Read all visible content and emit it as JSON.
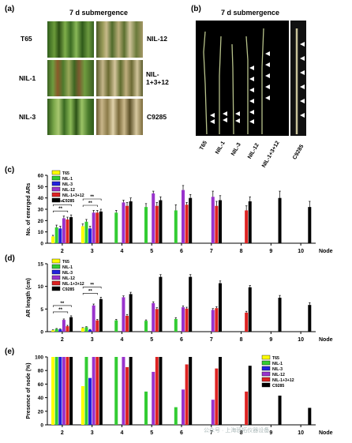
{
  "panel_a": {
    "letter": "(a)",
    "title": "7 d submergence",
    "labels": [
      "T65",
      "NIL-12",
      "NIL-1",
      "NIL-1+3+12",
      "NIL-3",
      "C9285"
    ]
  },
  "panel_b": {
    "letter": "(b)",
    "title": "7 d submergence",
    "bottom_labels": [
      "T65",
      "NIL-1",
      "NIL-3",
      "NIL-12",
      "NIL-1+3+12",
      "C9285"
    ]
  },
  "colors": {
    "T65": "#ffff00",
    "NIL-1": "#33cc33",
    "NIL-3": "#2222dd",
    "NIL-12": "#9933cc",
    "NIL-1+3+12": "#dd2222",
    "C9285": "#000000"
  },
  "watermark": "公众号 · 上海骄拓仪器设备",
  "chart_data": [
    {
      "letter": "(c)",
      "type": "bar",
      "ylabel": "No. of emerged ARs",
      "xlabel": "Node",
      "ylim": [
        0,
        60
      ],
      "yticks": [
        0,
        10,
        20,
        30,
        40,
        50,
        60
      ],
      "categories": [
        "2",
        "3",
        "4",
        "5",
        "6",
        "7",
        "8",
        "9",
        "10"
      ],
      "legend": [
        "T65",
        "NIL-1",
        "NIL-3",
        "NIL-12",
        "NIL-1+3+12",
        "C9285"
      ],
      "sig": [
        {
          "node": 0,
          "from": 0,
          "to": 4,
          "level": 0,
          "label": "**"
        },
        {
          "node": 0,
          "from": 0,
          "to": 5,
          "level": 1,
          "label": "**"
        },
        {
          "node": 1,
          "from": 0,
          "to": 4,
          "level": 0,
          "label": "**"
        },
        {
          "node": 1,
          "from": 0,
          "to": 5,
          "level": 1,
          "label": "**"
        }
      ],
      "series": [
        {
          "name": "T65",
          "values": [
            6,
            15,
            null,
            null,
            null,
            null,
            null,
            null,
            null
          ],
          "errors": [
            1,
            2,
            0,
            0,
            0,
            0,
            0,
            0,
            0
          ]
        },
        {
          "name": "NIL-1",
          "values": [
            14,
            19,
            27,
            32,
            29,
            null,
            null,
            null,
            null
          ],
          "errors": [
            2,
            2,
            2,
            3,
            5,
            0,
            0,
            0,
            0
          ]
        },
        {
          "name": "NIL-3",
          "values": [
            13,
            13,
            null,
            null,
            null,
            null,
            null,
            null,
            null
          ],
          "errors": [
            2,
            2,
            0,
            0,
            0,
            0,
            0,
            0,
            0
          ]
        },
        {
          "name": "NIL-12",
          "values": [
            22,
            27,
            36,
            44,
            47,
            41,
            null,
            null,
            null
          ],
          "errors": [
            2,
            2,
            2,
            2,
            4,
            5,
            0,
            0,
            0
          ]
        },
        {
          "name": "NIL-1+3+12",
          "values": [
            21,
            27,
            33,
            33,
            34,
            33,
            29,
            null,
            null
          ],
          "errors": [
            2,
            2,
            3,
            3,
            2,
            4,
            4,
            0,
            0
          ]
        },
        {
          "name": "C9285",
          "values": [
            23,
            28,
            37,
            38,
            40,
            38,
            37,
            40,
            32
          ],
          "errors": [
            2,
            2,
            3,
            3,
            3,
            4,
            4,
            6,
            5
          ]
        }
      ]
    },
    {
      "letter": "(d)",
      "type": "bar",
      "ylabel": "AR length (cm)",
      "xlabel": "Node",
      "ylim": [
        0,
        15
      ],
      "yticks": [
        0,
        5,
        10,
        15
      ],
      "categories": [
        "2",
        "3",
        "4",
        "5",
        "6",
        "7",
        "8",
        "9",
        "10"
      ],
      "legend": [
        "T65",
        "NIL-1",
        "NIL-3",
        "NIL-12",
        "NIL-1+3+12",
        "C9285"
      ],
      "sig": [
        {
          "node": 0,
          "from": 0,
          "to": 4,
          "level": 0,
          "label": "**"
        },
        {
          "node": 0,
          "from": 0,
          "to": 5,
          "level": 1,
          "label": "**"
        },
        {
          "node": 1,
          "from": 0,
          "to": 4,
          "level": 0,
          "label": "**"
        },
        {
          "node": 1,
          "from": 0,
          "to": 5,
          "level": 1,
          "label": "**"
        }
      ],
      "series": [
        {
          "name": "T65",
          "values": [
            0.3,
            0.8,
            null,
            null,
            null,
            null,
            null,
            null,
            null
          ],
          "errors": [
            0.1,
            0.1,
            0,
            0,
            0,
            0,
            0,
            0,
            0
          ]
        },
        {
          "name": "NIL-1",
          "values": [
            0.6,
            1.0,
            2.5,
            2.4,
            2.8,
            null,
            null,
            null,
            null
          ],
          "errors": [
            0.1,
            0.1,
            0.2,
            0.2,
            0.3,
            0,
            0,
            0,
            0
          ]
        },
        {
          "name": "NIL-3",
          "values": [
            0.5,
            0.4,
            null,
            null,
            null,
            null,
            null,
            null,
            null
          ],
          "errors": [
            0.1,
            0.1,
            0,
            0,
            0,
            0,
            0,
            0,
            0
          ]
        },
        {
          "name": "NIL-12",
          "values": [
            2.6,
            5.8,
            7.6,
            6.3,
            5.4,
            4.8,
            null,
            null,
            null
          ],
          "errors": [
            0.2,
            0.3,
            0.3,
            0.3,
            0.3,
            0.3,
            0,
            0,
            0
          ]
        },
        {
          "name": "NIL-1+3+12",
          "values": [
            1.2,
            2.5,
            3.5,
            5.0,
            5.1,
            5.2,
            4.2,
            null,
            null
          ],
          "errors": [
            0.2,
            0.2,
            0.3,
            0.3,
            0.3,
            0.3,
            0.3,
            0,
            0
          ]
        },
        {
          "name": "C9285",
          "values": [
            3.2,
            7.2,
            8.3,
            12.1,
            12.1,
            10.7,
            9.8,
            7.5,
            5.9
          ],
          "errors": [
            0.3,
            0.4,
            0.4,
            0.5,
            0.5,
            0.5,
            0.4,
            0.5,
            0.5
          ]
        }
      ]
    },
    {
      "letter": "(e)",
      "type": "bar",
      "ylabel": "Presence of node (%)",
      "xlabel": "Node",
      "ylim": [
        0,
        100
      ],
      "yticks": [
        0,
        20,
        40,
        60,
        80,
        100
      ],
      "categories": [
        "2",
        "3",
        "4",
        "5",
        "6",
        "7",
        "8",
        "9",
        "10"
      ],
      "legend": [
        "T65",
        "NIL-1",
        "NIL-3",
        "NIL-12",
        "NIL-1+3+12",
        "C9285"
      ],
      "sig": [],
      "series": [
        {
          "name": "T65",
          "values": [
            100,
            57,
            null,
            null,
            null,
            null,
            null,
            null,
            null
          ]
        },
        {
          "name": "NIL-1",
          "values": [
            100,
            100,
            100,
            49,
            26,
            null,
            null,
            null,
            null
          ]
        },
        {
          "name": "NIL-3",
          "values": [
            100,
            69,
            null,
            null,
            null,
            null,
            null,
            null,
            null
          ]
        },
        {
          "name": "NIL-12",
          "values": [
            100,
            100,
            100,
            78,
            52,
            37,
            null,
            null,
            null
          ]
        },
        {
          "name": "NIL-1+3+12",
          "values": [
            100,
            100,
            85,
            100,
            89,
            83,
            49,
            null,
            null
          ]
        },
        {
          "name": "C9285",
          "values": [
            100,
            100,
            100,
            100,
            100,
            100,
            87,
            43,
            25
          ]
        }
      ]
    }
  ]
}
